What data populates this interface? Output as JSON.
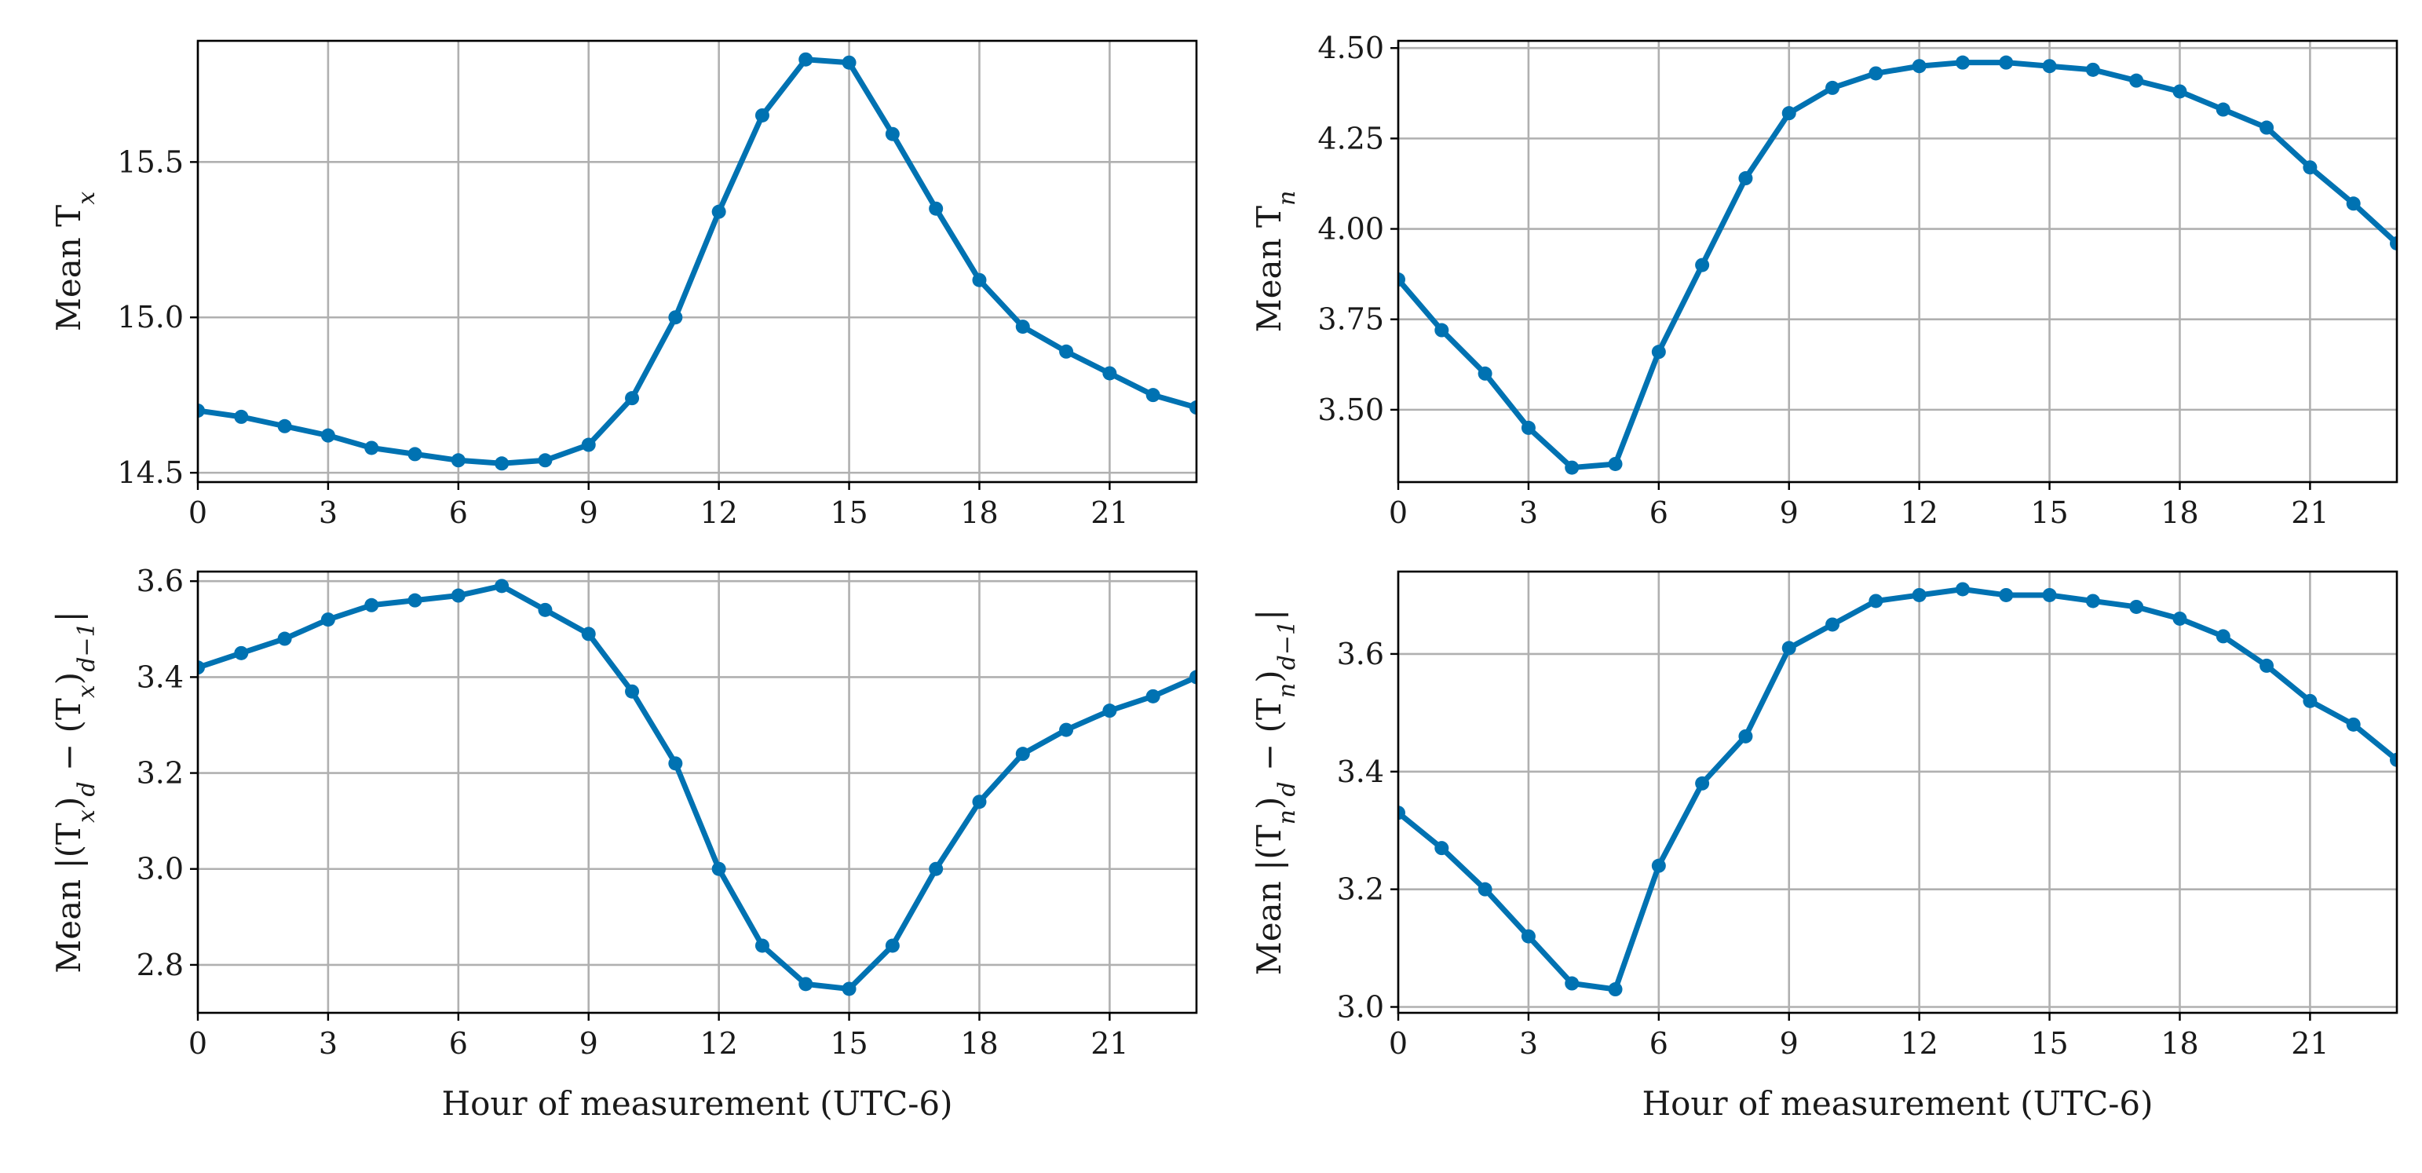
{
  "colors": {
    "series": "#0072b2",
    "grid": "#b0b0b0",
    "axes": "#000000",
    "background": "#ffffff"
  },
  "chart_data": [
    {
      "type": "line",
      "panel": "top-left",
      "title": "",
      "xlabel": "",
      "ylabel": "Mean T_x",
      "ylabel_parts": {
        "prefix": "Mean T",
        "subscript": "x"
      },
      "xlim": [
        0,
        23
      ],
      "ylim": [
        14.47,
        15.89
      ],
      "xticks": [
        0,
        3,
        6,
        9,
        12,
        15,
        18,
        21
      ],
      "xtick_labels": [
        "0",
        "3",
        "6",
        "9",
        "12",
        "15",
        "18",
        "21"
      ],
      "yticks": [
        14.5,
        15.0,
        15.5
      ],
      "ytick_labels": [
        "14.5",
        "15.0",
        "15.5"
      ],
      "grid": true,
      "x": [
        0,
        1,
        2,
        3,
        4,
        5,
        6,
        7,
        8,
        9,
        10,
        11,
        12,
        13,
        14,
        15,
        16,
        17,
        18,
        19,
        20,
        21,
        22,
        23
      ],
      "values": [
        14.7,
        14.68,
        14.65,
        14.62,
        14.58,
        14.56,
        14.54,
        14.53,
        14.54,
        14.59,
        14.74,
        15.0,
        15.34,
        15.65,
        15.83,
        15.82,
        15.59,
        15.35,
        15.12,
        14.97,
        14.89,
        14.82,
        14.75,
        14.71
      ]
    },
    {
      "type": "line",
      "panel": "top-right",
      "title": "",
      "xlabel": "",
      "ylabel": "Mean T_n",
      "ylabel_parts": {
        "prefix": "Mean T",
        "subscript": "n"
      },
      "xlim": [
        0,
        23
      ],
      "ylim": [
        3.3,
        4.52
      ],
      "xticks": [
        0,
        3,
        6,
        9,
        12,
        15,
        18,
        21
      ],
      "xtick_labels": [
        "0",
        "3",
        "6",
        "9",
        "12",
        "15",
        "18",
        "21"
      ],
      "yticks": [
        3.5,
        3.75,
        4.0,
        4.25,
        4.5
      ],
      "ytick_labels": [
        "3.50",
        "3.75",
        "4.00",
        "4.25",
        "4.50"
      ],
      "grid": true,
      "x": [
        0,
        1,
        2,
        3,
        4,
        5,
        6,
        7,
        8,
        9,
        10,
        11,
        12,
        13,
        14,
        15,
        16,
        17,
        18,
        19,
        20,
        21,
        22,
        23
      ],
      "values": [
        3.86,
        3.72,
        3.6,
        3.45,
        3.34,
        3.35,
        3.66,
        3.9,
        4.14,
        4.32,
        4.39,
        4.43,
        4.45,
        4.46,
        4.46,
        4.45,
        4.44,
        4.41,
        4.38,
        4.33,
        4.28,
        4.17,
        4.07,
        3.96
      ]
    },
    {
      "type": "line",
      "panel": "bottom-left",
      "title": "",
      "xlabel": "Hour of measurement (UTC-6)",
      "ylabel": "Mean |(T_x)_d − (T_x)_{d−1}|",
      "ylabel_parts": {
        "p1": "Mean |(T",
        "s1": "x",
        "p2": ")",
        "s2": "d",
        "p3": " − (T",
        "s3": "x",
        "p4": ")",
        "s4": "d−1",
        "p5": "|"
      },
      "xlim": [
        0,
        23
      ],
      "ylim": [
        2.7,
        3.62
      ],
      "xticks": [
        0,
        3,
        6,
        9,
        12,
        15,
        18,
        21
      ],
      "xtick_labels": [
        "0",
        "3",
        "6",
        "9",
        "12",
        "15",
        "18",
        "21"
      ],
      "yticks": [
        2.8,
        3.0,
        3.2,
        3.4,
        3.6
      ],
      "ytick_labels": [
        "2.8",
        "3.0",
        "3.2",
        "3.4",
        "3.6"
      ],
      "grid": true,
      "x": [
        0,
        1,
        2,
        3,
        4,
        5,
        6,
        7,
        8,
        9,
        10,
        11,
        12,
        13,
        14,
        15,
        16,
        17,
        18,
        19,
        20,
        21,
        22,
        23
      ],
      "values": [
        3.42,
        3.45,
        3.48,
        3.52,
        3.55,
        3.56,
        3.57,
        3.59,
        3.54,
        3.49,
        3.37,
        3.22,
        3.0,
        2.84,
        2.76,
        2.75,
        2.84,
        3.0,
        3.14,
        3.24,
        3.29,
        3.33,
        3.36,
        3.4
      ]
    },
    {
      "type": "line",
      "panel": "bottom-right",
      "title": "",
      "xlabel": "Hour of measurement (UTC-6)",
      "ylabel": "Mean |(T_n)_d − (T_n)_{d−1}|",
      "ylabel_parts": {
        "p1": "Mean |(T",
        "s1": "n",
        "p2": ")",
        "s2": "d",
        "p3": " − (T",
        "s3": "n",
        "p4": ")",
        "s4": "d−1",
        "p5": "|"
      },
      "xlim": [
        0,
        23
      ],
      "ylim": [
        2.99,
        3.74
      ],
      "xticks": [
        0,
        3,
        6,
        9,
        12,
        15,
        18,
        21
      ],
      "xtick_labels": [
        "0",
        "3",
        "6",
        "9",
        "12",
        "15",
        "18",
        "21"
      ],
      "yticks": [
        3.0,
        3.2,
        3.4,
        3.6
      ],
      "ytick_labels": [
        "3.0",
        "3.2",
        "3.4",
        "3.6"
      ],
      "grid": true,
      "x": [
        0,
        1,
        2,
        3,
        4,
        5,
        6,
        7,
        8,
        9,
        10,
        11,
        12,
        13,
        14,
        15,
        16,
        17,
        18,
        19,
        20,
        21,
        22,
        23
      ],
      "values": [
        3.33,
        3.27,
        3.2,
        3.12,
        3.04,
        3.03,
        3.24,
        3.38,
        3.46,
        3.61,
        3.65,
        3.69,
        3.7,
        3.71,
        3.7,
        3.7,
        3.69,
        3.68,
        3.66,
        3.63,
        3.58,
        3.52,
        3.48,
        3.42
      ]
    }
  ]
}
